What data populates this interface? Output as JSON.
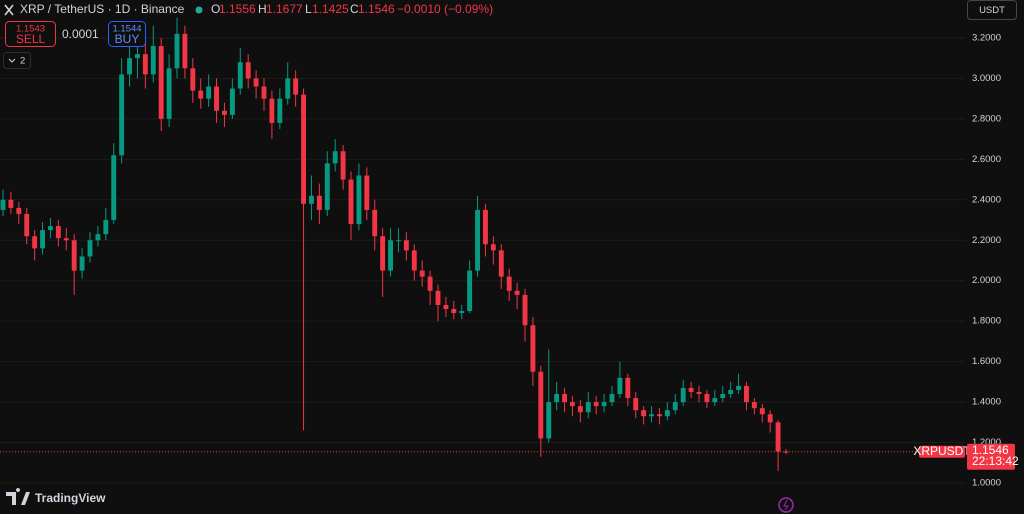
{
  "header": {
    "symbol": "XRP / TetherUS · 1D · Binance",
    "o": "O",
    "h": "H",
    "l": "L",
    "c": "C",
    "change": "−0.0010 (−0.09%)"
  },
  "trade": {
    "sell_price": 1.1543,
    "sell": "SELL",
    "spread": 0.0001,
    "buy_price": 1.1544,
    "buy": "BUY"
  },
  "indicators_count": 2,
  "currency": "USDT",
  "price_label": {
    "symbol": "XRPUSDT",
    "countdown": "22:13:42"
  },
  "brand": "TradingView",
  "chart_data": {
    "type": "candlestick",
    "open": [
      2.35,
      2.4,
      2.36,
      2.33,
      2.22,
      2.16,
      2.25,
      2.27,
      2.21,
      2.2,
      2.05,
      2.12,
      2.2,
      2.23,
      2.3,
      2.62,
      3.02,
      3.1,
      3.12,
      3.02,
      3.16,
      2.8,
      3.05,
      3.22,
      3.05,
      2.94,
      2.9,
      2.96,
      2.84,
      2.82,
      2.95,
      3.08,
      3.0,
      2.96,
      2.9,
      2.78,
      2.9,
      3.0,
      2.92,
      2.38,
      2.42,
      2.35,
      2.58,
      2.64,
      2.5,
      2.28,
      2.52,
      2.35,
      2.22,
      2.05,
      2.2,
      2.2,
      2.15,
      2.05,
      2.02,
      1.95,
      1.88,
      1.86,
      1.84,
      1.85,
      2.05,
      2.35,
      2.18,
      2.15,
      2.02,
      1.95,
      1.93,
      1.78,
      1.55,
      1.22,
      1.4,
      1.44,
      1.4,
      1.38,
      1.35,
      1.4,
      1.38,
      1.4,
      1.44,
      1.52,
      1.42,
      1.36,
      1.33,
      1.34,
      1.33,
      1.36,
      1.4,
      1.47,
      1.45,
      1.44,
      1.4,
      1.42,
      1.44,
      1.46,
      1.48,
      1.4,
      1.37,
      1.34,
      1.3,
      1.1556
    ],
    "high": [
      2.45,
      2.44,
      2.39,
      2.36,
      2.25,
      2.29,
      2.31,
      2.3,
      2.26,
      2.23,
      2.16,
      2.24,
      2.27,
      2.36,
      2.68,
      3.1,
      3.22,
      3.25,
      3.18,
      3.26,
      3.2,
      3.12,
      3.3,
      3.26,
      3.1,
      3.0,
      3.02,
      3.0,
      2.88,
      3.0,
      3.15,
      3.12,
      3.04,
      3.0,
      2.94,
      2.95,
      3.08,
      3.04,
      2.95,
      2.52,
      2.48,
      2.64,
      2.7,
      2.67,
      2.54,
      2.58,
      2.56,
      2.4,
      2.26,
      2.26,
      2.26,
      2.24,
      2.18,
      2.1,
      2.05,
      1.98,
      1.92,
      1.9,
      1.88,
      2.1,
      2.42,
      2.38,
      2.22,
      2.18,
      2.06,
      1.99,
      1.96,
      1.82,
      1.58,
      1.66,
      1.5,
      1.47,
      1.43,
      1.41,
      1.45,
      1.43,
      1.44,
      1.48,
      1.6,
      1.54,
      1.45,
      1.38,
      1.38,
      1.37,
      1.4,
      1.44,
      1.51,
      1.5,
      1.48,
      1.46,
      1.46,
      1.48,
      1.5,
      1.54,
      1.5,
      1.42,
      1.39,
      1.36,
      1.31,
      1.1677
    ],
    "low": [
      2.32,
      2.33,
      2.28,
      2.18,
      2.1,
      2.13,
      2.21,
      2.17,
      2.15,
      1.93,
      2.01,
      2.09,
      2.17,
      2.2,
      2.28,
      2.58,
      2.96,
      3.0,
      2.95,
      2.98,
      2.74,
      2.76,
      3.0,
      3.0,
      2.88,
      2.85,
      2.86,
      2.78,
      2.76,
      2.8,
      2.92,
      2.95,
      2.9,
      2.84,
      2.7,
      2.75,
      2.87,
      2.86,
      1.26,
      2.3,
      2.28,
      2.32,
      2.54,
      2.45,
      2.2,
      2.25,
      2.3,
      2.15,
      1.92,
      2.02,
      2.14,
      2.1,
      2.0,
      1.97,
      1.88,
      1.8,
      1.82,
      1.81,
      1.81,
      1.84,
      2.02,
      2.12,
      2.08,
      1.96,
      1.9,
      1.86,
      1.7,
      1.48,
      1.13,
      1.2,
      1.36,
      1.35,
      1.33,
      1.3,
      1.32,
      1.34,
      1.35,
      1.38,
      1.42,
      1.38,
      1.32,
      1.29,
      1.3,
      1.29,
      1.31,
      1.34,
      1.38,
      1.42,
      1.4,
      1.37,
      1.38,
      1.4,
      1.42,
      1.44,
      1.36,
      1.34,
      1.3,
      1.25,
      1.06,
      1.1425
    ],
    "close": [
      2.4,
      2.36,
      2.33,
      2.22,
      2.16,
      2.25,
      2.27,
      2.21,
      2.2,
      2.05,
      2.12,
      2.2,
      2.23,
      2.3,
      2.62,
      3.02,
      3.1,
      3.12,
      3.02,
      3.16,
      2.8,
      3.05,
      3.22,
      3.05,
      2.94,
      2.9,
      2.96,
      2.84,
      2.82,
      2.95,
      3.08,
      3.0,
      2.96,
      2.9,
      2.78,
      2.9,
      3.0,
      2.92,
      2.38,
      2.42,
      2.35,
      2.58,
      2.64,
      2.5,
      2.28,
      2.52,
      2.35,
      2.22,
      2.05,
      2.2,
      2.2,
      2.15,
      2.05,
      2.02,
      1.95,
      1.88,
      1.86,
      1.84,
      1.85,
      2.05,
      2.35,
      2.18,
      2.15,
      2.02,
      1.95,
      1.93,
      1.78,
      1.55,
      1.22,
      1.4,
      1.44,
      1.4,
      1.38,
      1.35,
      1.4,
      1.38,
      1.4,
      1.44,
      1.52,
      1.42,
      1.36,
      1.33,
      1.34,
      1.33,
      1.36,
      1.4,
      1.47,
      1.45,
      1.44,
      1.4,
      1.42,
      1.44,
      1.46,
      1.48,
      1.4,
      1.37,
      1.34,
      1.3,
      1.1556,
      1.1546
    ],
    "ylim": [
      0.8468,
      3.3876
    ],
    "yticks": [
      {
        "value": 1,
        "label": "1.0000"
      },
      {
        "value": 1.2,
        "label": "1.2000"
      },
      {
        "value": 1.4,
        "label": "1.4000"
      },
      {
        "value": 1.6,
        "label": "1.6000"
      },
      {
        "value": 1.8,
        "label": "1.8000"
      },
      {
        "value": 2,
        "label": "2.0000"
      },
      {
        "value": 2.2,
        "label": "2.2000"
      },
      {
        "value": 2.4,
        "label": "2.4000"
      },
      {
        "value": 2.6,
        "label": "2.6000"
      },
      {
        "value": 2.8,
        "label": "2.8000"
      },
      {
        "value": 3,
        "label": "3.0000"
      },
      {
        "value": 3.2,
        "label": "3.2000"
      }
    ],
    "grid": true,
    "up_color": "#089981",
    "down_color": "#f23645"
  }
}
